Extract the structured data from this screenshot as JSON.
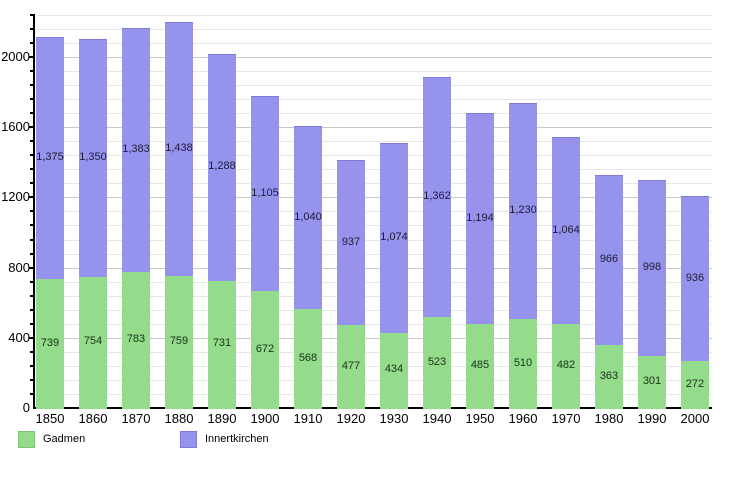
{
  "chart_data": {
    "type": "bar",
    "stacked": true,
    "title": "",
    "xlabel": "",
    "ylabel": "",
    "categories": [
      "1850",
      "1860",
      "1870",
      "1880",
      "1890",
      "1900",
      "1910",
      "1920",
      "1930",
      "1940",
      "1950",
      "1960",
      "1970",
      "1980",
      "1990",
      "2000"
    ],
    "series": [
      {
        "name": "Gadmen",
        "color": "#94DB8C",
        "edge_color": "#7cc47a",
        "label_color": "#173317",
        "values": [
          739,
          754,
          783,
          759,
          731,
          672,
          568,
          477,
          434,
          523,
          485,
          510,
          482,
          363,
          301,
          272
        ]
      },
      {
        "name": "Innertkirchen",
        "color": "#9693EC",
        "edge_color": "#7d7ad9",
        "label_color": "#1c1c3a",
        "values": [
          1375,
          1350,
          1383,
          1438,
          1288,
          1105,
          1040,
          937,
          1074,
          1362,
          1194,
          1230,
          1064,
          966,
          998,
          936
        ]
      }
    ],
    "y_axis": {
      "min": 0,
      "max": 2240,
      "major_step": 400,
      "minor_step": 80,
      "tick_labels": [
        "0",
        "400",
        "800",
        "1200",
        "1600",
        "2000"
      ]
    },
    "grid": true,
    "legend_position": "bottom-left",
    "axis_color": "#000000",
    "gridline_minor_color": "#e7e7e7",
    "gridline_major_color": "#c9c9c9",
    "background_color": "#ffffff"
  }
}
